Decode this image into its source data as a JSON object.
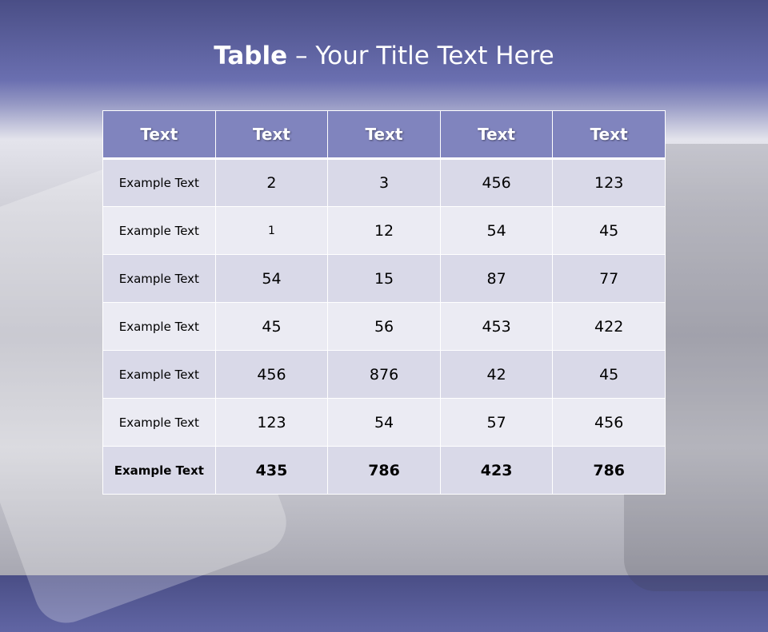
{
  "title": {
    "bold": "Table",
    "rest": " – Your Title Text Here"
  },
  "table": {
    "headers": [
      "Text",
      "Text",
      "Text",
      "Text",
      "Text"
    ],
    "rows": [
      [
        "Example Text",
        "2",
        "3",
        "456",
        "123"
      ],
      [
        "Example Text",
        "1",
        "12",
        "54",
        "45"
      ],
      [
        "Example Text",
        "54",
        "15",
        "87",
        "77"
      ],
      [
        "Example Text",
        "45",
        "56",
        "453",
        "422"
      ],
      [
        "Example Text",
        "456",
        "876",
        "42",
        "45"
      ],
      [
        "Example Text",
        "123",
        "54",
        "57",
        "456"
      ],
      [
        "Example Text",
        "435",
        "786",
        "423",
        "786"
      ]
    ]
  },
  "colors": {
    "header": "#8084be",
    "row_dark": "#d9d9e8",
    "row_light": "#ebebf3",
    "title_band": "#6a6fb0"
  }
}
